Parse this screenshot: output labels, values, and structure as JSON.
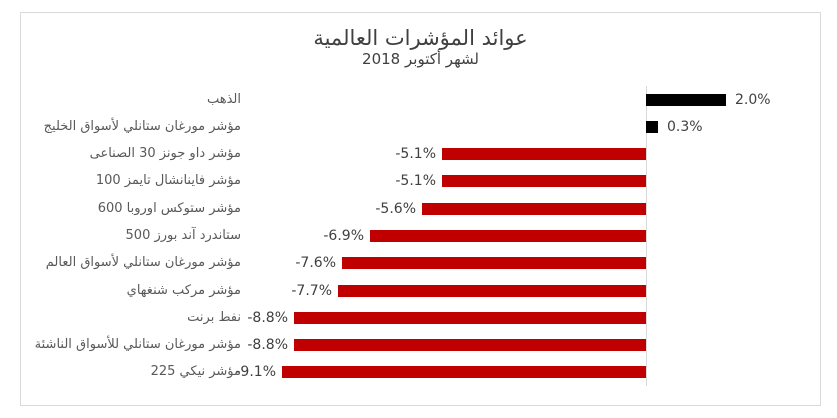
{
  "chart": {
    "title": "عوائد المؤشرات العالمية",
    "subtitle": "لشهر أكتوبر 2018",
    "colors": {
      "negative_bar": "#C00000",
      "positive_bar": "#000000",
      "axis_line": "#D9D9D9",
      "category_label": "#595959",
      "value_label": "#404040",
      "chart_border": "#D9D9D9",
      "background": "#FFFFFF"
    }
  },
  "chart_data": {
    "type": "bar",
    "orientation": "horizontal",
    "title": "عوائد المؤشرات العالمية",
    "subtitle": "لشهر أكتوبر 2018",
    "categories": [
      "الذهب",
      "مؤشر مورغان ستانلي لأسواق الخليج",
      "مؤشر داو جونز 30 الصناعى",
      "مؤشر فاينانشال تايمز 100",
      "مؤشر ستوكس اوروبا 600",
      "ستاندرد آند بورز 500",
      "مؤشر مورغان ستانلي لأسواق العالم",
      "مؤشر مركب شنغهاي",
      "نفط برنت",
      "مؤشر مورغان ستانلي للأسواق الناشئة",
      "مؤشر نيكي 225"
    ],
    "values": [
      2.0,
      0.3,
      -5.1,
      -5.1,
      -5.6,
      -6.9,
      -7.6,
      -7.7,
      -8.8,
      -8.8,
      -9.1
    ],
    "value_labels": [
      "2.0%",
      "0.3%",
      "-5.1%",
      "-5.1%",
      "-5.6%",
      "-6.9%",
      "-7.6%",
      "-7.7%",
      "-8.8%",
      "-8.8%",
      "-9.1%"
    ],
    "xlim": [
      -10,
      3
    ],
    "grid": false,
    "legend": false,
    "data_labels": "outside-end"
  }
}
